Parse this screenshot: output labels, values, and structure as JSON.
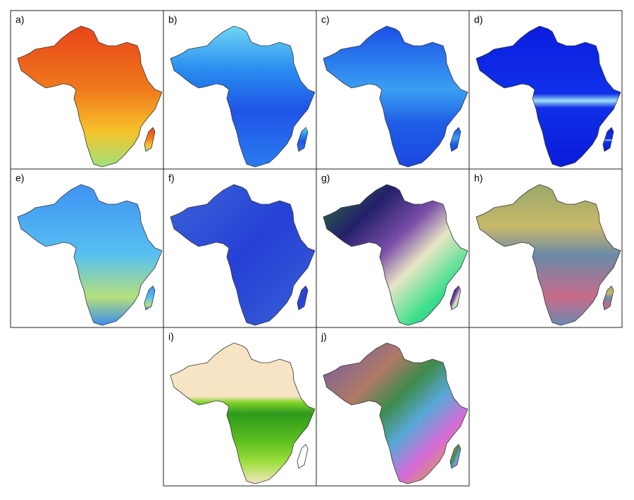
{
  "panels": [
    {
      "label": "a)"
    },
    {
      "label": "b)"
    },
    {
      "label": "c)"
    },
    {
      "label": "d)"
    },
    {
      "label": "e)"
    },
    {
      "label": "f)"
    },
    {
      "label": "g)"
    },
    {
      "label": "h)"
    },
    {
      "label": "i)"
    },
    {
      "label": "j)"
    }
  ]
}
